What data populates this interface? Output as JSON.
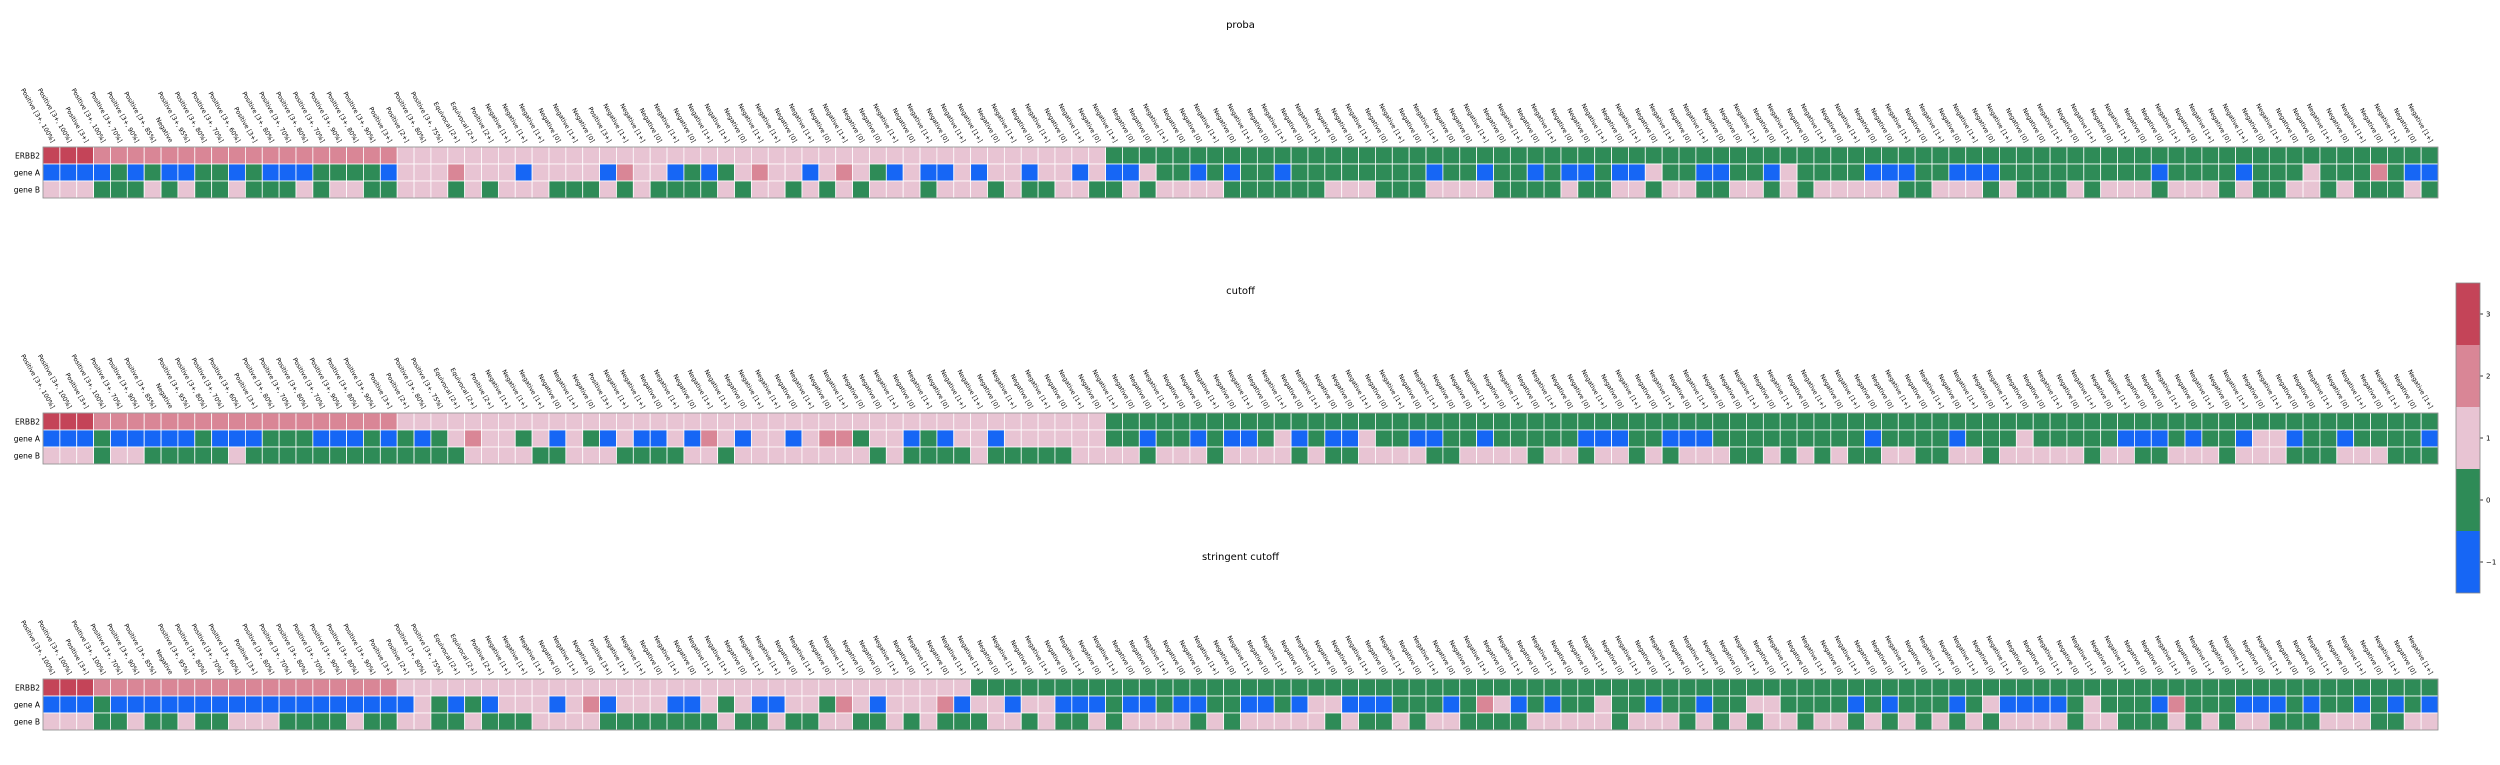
{
  "chart_data": {
    "type": "heatmap",
    "row_labels": [
      "ERBB2",
      "gene A",
      "gene B"
    ],
    "column_labels": [
      "Positive [3+, 100%]",
      "Positive [3+, 100%]",
      "Positive [3+]",
      "Positive [3+, 100%]",
      "Positive [3+, 70%]",
      "Positive [3+, 90%]",
      "Positive [3+, 85%]",
      "Negative",
      "Positive [3+, 95%]",
      "Positive [3+, 80%]",
      "Positive [3+, 70%]",
      "Positive [3+, 60%]",
      "Positive [3+]",
      "Positive [3+, 80%]",
      "Positive [3+, 70%]",
      "Positive [3+, 80%]",
      "Positive [3+, 70%]",
      "Positive [3+, 90%]",
      "Positive [3+, 80%]",
      "Positive [3+, 90%]",
      "Positive [3+]",
      "Positive [2+]",
      "Positive [3+, 80%]",
      "Positive [3+, 75%]",
      "Equivocal [2+]",
      "Equivocal [2+]",
      "Positive [2+]",
      "Negative [1+]",
      "Negative [1+]",
      "Negative [1+]",
      "Negative [0]",
      "Negative [1+]",
      "Negative [0]",
      "Positive [3+]",
      "Negative [1+]",
      "Negative [1+]",
      "Negative [0]",
      "Negative [1+]",
      "Negative [0]",
      "Negative [1+]",
      "Negative [1+]",
      "Negative [0]",
      "Negative [1+]",
      "Negative [1+]",
      "Negative [0]",
      "Negative [1+]",
      "Negative [0]",
      "Negative [1+]",
      "Negative [0]",
      "Negative [0]",
      "Negative [1+]",
      "Negative [0]",
      "Negative [1+]",
      "Negative [0]",
      "Negative [1+]",
      "Negative [1+]",
      "Negative [0]",
      "Negative [1+]",
      "Negative [0]",
      "Negative [1+]",
      "Negative [0]",
      "Negative [1+]",
      "Negative [0]",
      "Negative [1+]",
      "Negative [0]",
      "Negative [0]",
      "Negative [1+]",
      "Negative [0]",
      "Negative [0]",
      "Negative [1+]",
      "Negative [0]",
      "Negative [1+]",
      "Negative [0]",
      "Negative [1+]",
      "Negative [0]",
      "Negative [1+]",
      "Negative [0]",
      "Negative [0]",
      "Negative [1+]",
      "Negative [0]",
      "Negative [1+]",
      "Negative [0]",
      "Negative [1+]",
      "Negative [0]",
      "Negative [0]",
      "Negative [1+]",
      "Negative [0]",
      "Negative [1+]",
      "Negative [0]",
      "Negative [1+]",
      "Negative [0]",
      "Negative [0]",
      "Negative [1+]",
      "Negative [0]",
      "Negative [1+]",
      "Negative [0]",
      "Negative [1+]",
      "Negative [0]",
      "Negative [1+]",
      "Negative [0]",
      "Negative [0]",
      "Negative [1+]",
      "Negative [0]",
      "Negative [1+]",
      "Negative [0]",
      "Negative [1+]",
      "Negative [0]",
      "Negative [1+]",
      "Negative [0]",
      "Negative [0]",
      "Negative [1+]",
      "Negative [0]",
      "Negative [1+]",
      "Negative [0]",
      "Negative [1+]",
      "Negative [0]",
      "Negative [1+]",
      "Negative [0]",
      "Negative [0]",
      "Negative [1+]",
      "Negative [0]",
      "Negative [1+]",
      "Negative [0]",
      "Negative [1+]",
      "Negative [0]",
      "Negative [0]",
      "Negative [1+]",
      "Negative [0]",
      "Negative [1+]",
      "Negative [0]",
      "Negative [1+]",
      "Negative [0]",
      "Negative [1+]",
      "Negative [0]",
      "Negative [0]",
      "Negative [1+]",
      "Negative [0]",
      "Negative [1+]",
      "Negative [0]",
      "Negative [1+]",
      "Negative [0]",
      "Negative [1+]"
    ],
    "panels": [
      {
        "title": "proba",
        "rows": {
          "ERBB2": "3333222222222222222221111111111111111111111111111111111111111111111111111111111111111111111111111111111111111111111111111111111111111111111111111111111100000000000000000000000000000000000000000000000000000000000000000000",
          "gene A": "-1-1-1000-1-1-1-1-1-1-1-1-1-10-1-1-1-111-1-1-1-1-1-111-1-1-1-1-1-1-1-1-1-121-1-1110-11200-11-1-1-1-1-1-1-1-1111-1-11111111111111111111121-1-10000-1000000000000000-10000-10-100-1-1-1-1-1-1-1-100000002-1-1-1-1-1-1-1-1000000000000000",
          "gene B": "0000000000000000000000000000000000000000000000000000000000000000000000000000000000000000000000000000000000000000000000000000000000000000000000000000000000000000000000000000000000000000000000000000000000000000000"
        }
      },
      {
        "title": "cutoff"
      },
      {
        "title": "stringent cutoff"
      }
    ],
    "colorbar": {
      "ticks": [
        "3",
        "2",
        "1",
        "0",
        "−1"
      ],
      "colors": {
        "3": "#c44458",
        "2": "#d98696",
        "1": "#e8c4d3",
        "0": "#2e8b57",
        "-1": "#1666f5"
      }
    }
  }
}
